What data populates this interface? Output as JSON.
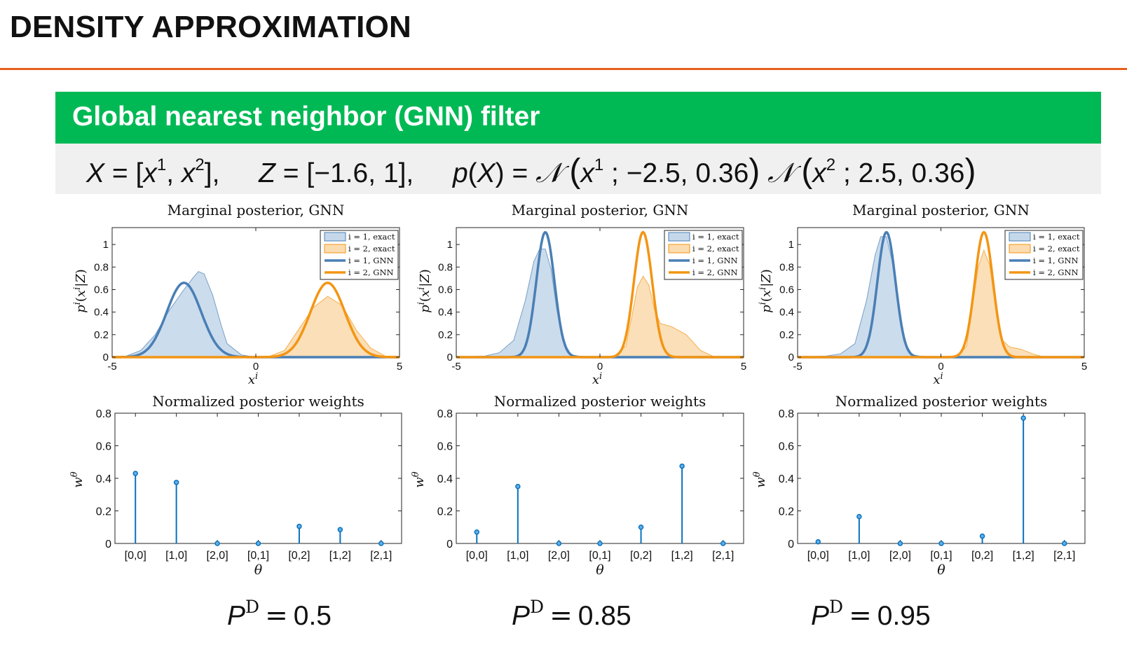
{
  "slide_title": "DENSITY APPROXIMATION",
  "banner_title": "Global nearest neighbor (GNN) filter",
  "colors": {
    "title_rule": "#e8601c",
    "banner_bg": "#00b955",
    "blue": "#4a7fb5",
    "orange": "#f39514",
    "blue_fill": "#c5d8ea",
    "orange_fill": "#fbdcb0",
    "stem": "#0a72bd"
  },
  "formula": {
    "X": "X",
    "eq": "=",
    "X_open": "[",
    "x": "x",
    "sup1": "1",
    "sup2": "2",
    "comma": ",",
    "X_close": "],",
    "Z": "Z",
    "Z_val": "[−1.6,  1],",
    "p": "p",
    "pX_open": "(",
    "pX_X": "X",
    "pX_close": ")",
    "N": "𝒩",
    "lparen": "(",
    "rparen": ")",
    "args1": " ; −2.5, 0.36",
    "args2": " ; 2.5, 0.36"
  },
  "chart_data": [
    {
      "type": "area",
      "panel": 1,
      "title": "Marginal posterior, GNN",
      "xlabel": "x^i",
      "ylabel": "p^i(x^i|Z)",
      "xlim": [
        -5,
        5
      ],
      "ylim": [
        0,
        1.15
      ],
      "xticks": [
        -5,
        0,
        5
      ],
      "yticks": [
        0,
        0.2,
        0.4,
        0.6,
        0.8,
        1
      ],
      "legend": [
        "i = 1, exact",
        "i = 2, exact",
        "i = 1, GNN",
        "i = 2, GNN"
      ],
      "legend_position": "top-right",
      "series": [
        {
          "name": "i = 1, exact",
          "style": "filled",
          "x": [
            -5,
            -4.5,
            -4,
            -3.5,
            -3,
            -2.5,
            -2.2,
            -2,
            -1.8,
            -1.5,
            -1.2,
            -1,
            -0.5,
            0,
            5
          ],
          "y": [
            0,
            0.01,
            0.06,
            0.2,
            0.42,
            0.6,
            0.7,
            0.76,
            0.74,
            0.55,
            0.28,
            0.12,
            0.02,
            0,
            0
          ]
        },
        {
          "name": "i = 2, exact",
          "style": "filled",
          "x": [
            -5,
            0,
            0.5,
            1,
            1.5,
            2,
            2.5,
            3,
            3.5,
            4,
            4.5,
            5
          ],
          "y": [
            0,
            0,
            0.01,
            0.06,
            0.25,
            0.44,
            0.54,
            0.46,
            0.24,
            0.08,
            0.01,
            0
          ]
        },
        {
          "name": "i = 1, GNN",
          "style": "line",
          "mean": -2.5,
          "variance": 0.36,
          "peak": 0.66
        },
        {
          "name": "i = 2, GNN",
          "style": "line",
          "mean": 2.5,
          "variance": 0.36,
          "peak": 0.66
        }
      ]
    },
    {
      "type": "area",
      "panel": 2,
      "title": "Marginal posterior, GNN",
      "xlabel": "x^i",
      "ylabel": "p^i(x^i|Z)",
      "xlim": [
        -5,
        5
      ],
      "ylim": [
        0,
        1.15
      ],
      "xticks": [
        -5,
        0,
        5
      ],
      "yticks": [
        0,
        0.2,
        0.4,
        0.6,
        0.8,
        1
      ],
      "legend": [
        "i = 1, exact",
        "i = 2, exact",
        "i = 1, GNN",
        "i = 2, GNN"
      ],
      "legend_position": "top-right",
      "series": [
        {
          "name": "i = 1, exact",
          "style": "filled",
          "x": [
            -5,
            -4,
            -3.5,
            -3,
            -2.6,
            -2.3,
            -2.1,
            -1.9,
            -1.7,
            -1.5,
            -1.3,
            -1,
            -0.5,
            5
          ],
          "y": [
            0,
            0.01,
            0.04,
            0.15,
            0.5,
            0.85,
            0.96,
            0.96,
            0.78,
            0.42,
            0.15,
            0.02,
            0,
            0
          ]
        },
        {
          "name": "i = 2, exact",
          "style": "filled",
          "x": [
            -5,
            0,
            0.5,
            0.9,
            1.1,
            1.3,
            1.5,
            1.7,
            1.9,
            2.1,
            2.5,
            3,
            3.5,
            4,
            5
          ],
          "y": [
            0,
            0,
            0.01,
            0.1,
            0.35,
            0.62,
            0.72,
            0.64,
            0.42,
            0.3,
            0.27,
            0.2,
            0.06,
            0,
            0
          ]
        },
        {
          "name": "i = 1, GNN",
          "style": "line",
          "mean": -1.9,
          "variance": 0.1,
          "peak": 1.11
        },
        {
          "name": "i = 2, GNN",
          "style": "line",
          "mean": 1.5,
          "variance": 0.1,
          "peak": 1.11
        }
      ]
    },
    {
      "type": "area",
      "panel": 3,
      "title": "Marginal posterior, GNN",
      "xlabel": "x^i",
      "ylabel": "p^i(x^i|Z)",
      "xlim": [
        -5,
        5
      ],
      "ylim": [
        0,
        1.15
      ],
      "xticks": [
        -5,
        0,
        5
      ],
      "yticks": [
        0,
        0.2,
        0.4,
        0.6,
        0.8,
        1
      ],
      "legend": [
        "i = 1, exact",
        "i = 2, exact",
        "i = 1, GNN",
        "i = 2, GNN"
      ],
      "legend_position": "top-right",
      "series": [
        {
          "name": "i = 1, exact",
          "style": "filled",
          "x": [
            -5,
            -4,
            -3.5,
            -3,
            -2.6,
            -2.3,
            -2.1,
            -1.9,
            -1.7,
            -1.5,
            -1.3,
            -1,
            -0.5,
            5
          ],
          "y": [
            0,
            0.01,
            0.03,
            0.12,
            0.5,
            0.9,
            1.07,
            1.07,
            0.85,
            0.45,
            0.15,
            0.02,
            0,
            0
          ]
        },
        {
          "name": "i = 2, exact",
          "style": "filled",
          "x": [
            -5,
            0,
            0.6,
            0.9,
            1.1,
            1.3,
            1.5,
            1.7,
            1.9,
            2.1,
            2.4,
            2.8,
            3.2,
            3.6,
            5
          ],
          "y": [
            0,
            0,
            0.01,
            0.1,
            0.45,
            0.8,
            0.95,
            0.82,
            0.45,
            0.16,
            0.09,
            0.07,
            0.03,
            0,
            0
          ]
        },
        {
          "name": "i = 1, GNN",
          "style": "line",
          "mean": -1.9,
          "variance": 0.1,
          "peak": 1.11
        },
        {
          "name": "i = 2, GNN",
          "style": "line",
          "mean": 1.5,
          "variance": 0.1,
          "peak": 1.11
        }
      ]
    },
    {
      "type": "stem",
      "panel": 1,
      "title": "Normalized posterior weights",
      "xlabel": "θ",
      "ylabel": "w^θ",
      "ylim": [
        0,
        0.8
      ],
      "yticks": [
        0,
        0.2,
        0.4,
        0.6,
        0.8
      ],
      "categories": [
        "[0,0]",
        "[1,0]",
        "[2,0]",
        "[0,1]",
        "[0,2]",
        "[1,2]",
        "[2,1]"
      ],
      "values": [
        0.43,
        0.375,
        0,
        0,
        0.105,
        0.085,
        0
      ]
    },
    {
      "type": "stem",
      "panel": 2,
      "title": "Normalized posterior weights",
      "xlabel": "θ",
      "ylabel": "w^θ",
      "ylim": [
        0,
        0.8
      ],
      "yticks": [
        0,
        0.2,
        0.4,
        0.6,
        0.8
      ],
      "categories": [
        "[0,0]",
        "[1,0]",
        "[2,0]",
        "[0,1]",
        "[0,2]",
        "[1,2]",
        "[2,1]"
      ],
      "values": [
        0.07,
        0.35,
        0,
        0,
        0.1,
        0.475,
        0
      ]
    },
    {
      "type": "stem",
      "panel": 3,
      "title": "Normalized posterior weights",
      "xlabel": "θ",
      "ylabel": "w^θ",
      "ylim": [
        0,
        0.8
      ],
      "yticks": [
        0,
        0.2,
        0.4,
        0.6,
        0.8
      ],
      "categories": [
        "[0,0]",
        "[1,0]",
        "[2,0]",
        "[0,1]",
        "[0,2]",
        "[1,2]",
        "[2,1]"
      ],
      "values": [
        0.01,
        0.165,
        0,
        0,
        0.045,
        0.77,
        0
      ]
    }
  ],
  "pd_labels": [
    {
      "P": "P",
      "sup": "D",
      "eq": "=",
      "value": "0.5"
    },
    {
      "P": "P",
      "sup": "D",
      "eq": "=",
      "value": "0.85"
    },
    {
      "P": "P",
      "sup": "D",
      "eq": "=",
      "value": "0.95"
    }
  ]
}
